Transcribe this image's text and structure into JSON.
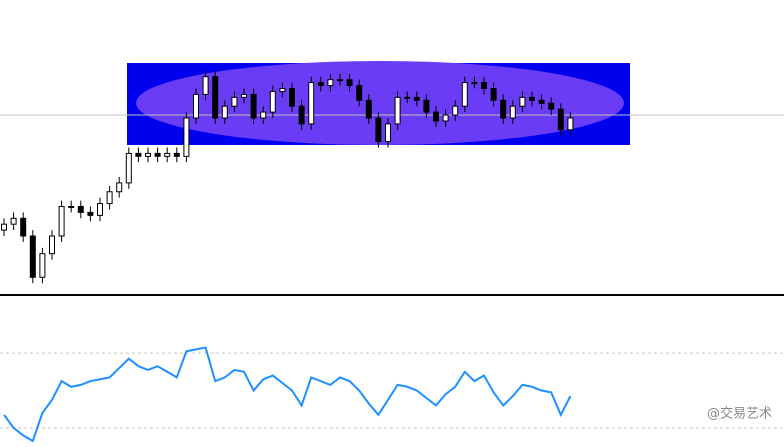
{
  "chart_data": {
    "type": "candlestick",
    "open": [
      22,
      24,
      26,
      20,
      6,
      14,
      20,
      30,
      30,
      28,
      27,
      31,
      35,
      38,
      48,
      47,
      48,
      47,
      48,
      47,
      60,
      68,
      74,
      60,
      64,
      67,
      68,
      60,
      62,
      69,
      70,
      64,
      58,
      72,
      71,
      73,
      73,
      71,
      66,
      60,
      52,
      58,
      67,
      67,
      66,
      62,
      59,
      61,
      64,
      72,
      72,
      70,
      66,
      60,
      64,
      67,
      66,
      65,
      63,
      56
    ],
    "high": [
      26,
      28,
      28,
      22,
      16,
      22,
      32,
      32,
      32,
      30,
      33,
      37,
      40,
      50,
      50,
      50,
      50,
      50,
      50,
      62,
      70,
      76,
      76,
      66,
      69,
      70,
      70,
      64,
      71,
      72,
      72,
      66,
      74,
      74,
      75,
      75,
      75,
      73,
      68,
      62,
      60,
      69,
      69,
      69,
      68,
      64,
      63,
      66,
      74,
      74,
      74,
      72,
      68,
      66,
      69,
      69,
      68,
      67,
      65,
      62
    ],
    "low": [
      20,
      22,
      18,
      4,
      4,
      12,
      18,
      28,
      26,
      25,
      25,
      29,
      33,
      36,
      45,
      45,
      45,
      45,
      45,
      45,
      58,
      66,
      58,
      58,
      62,
      65,
      58,
      58,
      60,
      67,
      62,
      56,
      56,
      69,
      69,
      71,
      69,
      64,
      58,
      50,
      50,
      56,
      65,
      64,
      60,
      57,
      57,
      59,
      62,
      70,
      68,
      64,
      58,
      58,
      62,
      64,
      63,
      61,
      54,
      54
    ],
    "close": [
      24,
      26,
      20,
      6,
      14,
      20,
      30,
      30,
      28,
      27,
      31,
      35,
      38,
      48,
      47,
      48,
      47,
      48,
      47,
      60,
      68,
      74,
      60,
      64,
      67,
      68,
      60,
      62,
      69,
      70,
      64,
      58,
      72,
      71,
      73,
      73,
      71,
      66,
      60,
      52,
      58,
      67,
      67,
      66,
      62,
      59,
      61,
      64,
      72,
      72,
      70,
      66,
      60,
      64,
      67,
      66,
      65,
      63,
      56,
      60
    ],
    "ylim": [
      0,
      100
    ],
    "up_color": "#ffffff",
    "down_color": "#000000",
    "indicator": {
      "type": "line",
      "color": "#1e90ff",
      "ylim": [
        0,
        100
      ],
      "levels": [
        30,
        70
      ],
      "values": [
        37,
        30,
        26,
        23,
        38,
        45,
        55,
        52,
        53,
        55,
        56,
        57,
        62,
        67,
        63,
        61,
        63,
        60,
        57,
        71,
        72,
        73,
        55,
        57,
        61,
        60,
        50,
        56,
        58,
        54,
        50,
        42,
        57,
        55,
        53,
        57,
        55,
        50,
        43,
        37,
        45,
        53,
        52,
        50,
        46,
        42,
        48,
        52,
        60,
        55,
        58,
        49,
        42,
        47,
        53,
        52,
        50,
        49,
        37,
        47
      ]
    }
  },
  "watermark": "@交易艺术"
}
